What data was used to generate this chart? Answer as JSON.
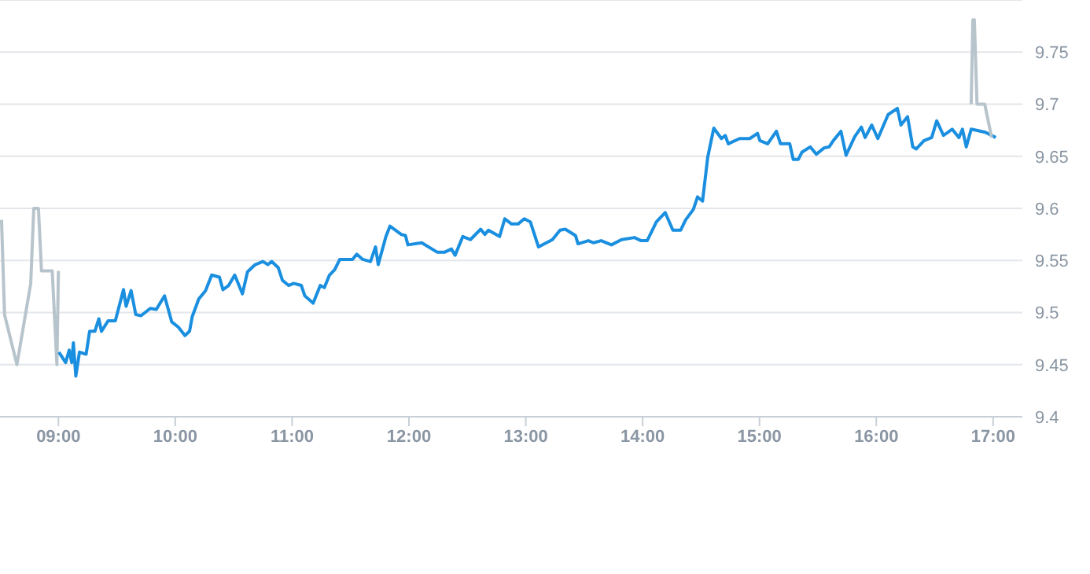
{
  "chart_data": {
    "type": "line",
    "xlim": [
      8.5,
      17.25
    ],
    "ylim": [
      9.4,
      9.8
    ],
    "xticks": [
      {
        "value": 9,
        "label": "09:00"
      },
      {
        "value": 10,
        "label": "10:00"
      },
      {
        "value": 11,
        "label": "11:00"
      },
      {
        "value": 12,
        "label": "12:00"
      },
      {
        "value": 13,
        "label": "13:00"
      },
      {
        "value": 14,
        "label": "14:00"
      },
      {
        "value": 15,
        "label": "15:00"
      },
      {
        "value": 16,
        "label": "16:00"
      },
      {
        "value": 17,
        "label": "17:00"
      }
    ],
    "yticks": [
      9.4,
      9.45,
      9.5,
      9.55,
      9.6,
      9.65,
      9.7,
      9.75
    ],
    "grid": "y",
    "marker": "none",
    "line_style": "solid",
    "series": [
      {
        "color": "#b8c4cc",
        "x": [
          8.513,
          8.539,
          8.645,
          8.763,
          8.789,
          8.829,
          8.855,
          8.947,
          8.987,
          9.0
        ],
        "values": [
          9.589,
          9.498,
          9.45,
          9.528,
          9.6,
          9.6,
          9.54,
          9.54,
          9.45,
          9.54
        ]
      },
      {
        "color": "#1a8fe0",
        "x": [
          9.004,
          9.062,
          9.092,
          9.114,
          9.128,
          9.149,
          9.18,
          9.237,
          9.267,
          9.312,
          9.346,
          9.368,
          9.425,
          9.487,
          9.557,
          9.579,
          9.622,
          9.662,
          9.707,
          9.786,
          9.838,
          9.908,
          9.97,
          10.026,
          10.083,
          10.122,
          10.145,
          10.201,
          10.259,
          10.312,
          10.378,
          10.408,
          10.457,
          10.509,
          10.575,
          10.618,
          10.684,
          10.75,
          10.793,
          10.825,
          10.882,
          10.917,
          10.97,
          11.013,
          11.079,
          11.109,
          11.18,
          11.241,
          11.276,
          11.32,
          11.364,
          11.408,
          11.517,
          11.553,
          11.605,
          11.671,
          11.714,
          11.737,
          11.803,
          11.838,
          11.934,
          11.97,
          11.991,
          12.109,
          12.241,
          12.307,
          12.364,
          12.395,
          12.461,
          12.526,
          12.614,
          12.649,
          12.68,
          12.776,
          12.82,
          12.878,
          12.934,
          12.987,
          13.039,
          13.109,
          13.228,
          13.293,
          13.338,
          13.425,
          13.447,
          13.536,
          13.579,
          13.645,
          13.733,
          13.82,
          13.93,
          13.987,
          14.039,
          14.118,
          14.193,
          14.259,
          14.325,
          14.368,
          14.434,
          14.47,
          14.513,
          14.557,
          14.609,
          14.675,
          14.707,
          14.733,
          14.829,
          14.917,
          14.983,
          15.004,
          15.07,
          15.145,
          15.18,
          15.259,
          15.289,
          15.333,
          15.364,
          15.434,
          15.487,
          15.553,
          15.596,
          15.632,
          15.697,
          15.741,
          15.816,
          15.872,
          15.904,
          15.961,
          16.013,
          16.101,
          16.18,
          16.211,
          16.267,
          16.312,
          16.342,
          16.408,
          16.474,
          16.517,
          16.575,
          16.649,
          16.707,
          16.737,
          16.77,
          16.812,
          16.934,
          17.022
        ],
        "values": [
          9.462,
          9.452,
          9.464,
          9.452,
          9.471,
          9.439,
          9.462,
          9.46,
          9.482,
          9.482,
          9.494,
          9.482,
          9.492,
          9.492,
          9.522,
          9.506,
          9.521,
          9.498,
          9.497,
          9.504,
          9.503,
          9.516,
          9.491,
          9.486,
          9.478,
          9.482,
          9.496,
          9.513,
          9.521,
          9.536,
          9.534,
          9.522,
          9.526,
          9.536,
          9.518,
          9.539,
          9.546,
          9.549,
          9.546,
          9.549,
          9.543,
          9.531,
          9.526,
          9.528,
          9.526,
          9.516,
          9.509,
          9.526,
          9.524,
          9.536,
          9.541,
          9.551,
          9.551,
          9.556,
          9.551,
          9.549,
          9.563,
          9.546,
          9.573,
          9.583,
          9.575,
          9.574,
          9.565,
          9.567,
          9.558,
          9.558,
          9.561,
          9.555,
          9.573,
          9.57,
          9.58,
          9.575,
          9.579,
          9.573,
          9.59,
          9.585,
          9.585,
          9.59,
          9.587,
          9.563,
          9.57,
          9.579,
          9.58,
          9.574,
          9.566,
          9.569,
          9.567,
          9.569,
          9.565,
          9.57,
          9.572,
          9.569,
          9.569,
          9.587,
          9.596,
          9.579,
          9.579,
          9.589,
          9.599,
          9.611,
          9.607,
          9.649,
          9.677,
          9.667,
          9.67,
          9.662,
          9.667,
          9.667,
          9.672,
          9.665,
          9.662,
          9.674,
          9.662,
          9.662,
          9.647,
          9.647,
          9.654,
          9.659,
          9.652,
          9.658,
          9.659,
          9.665,
          9.674,
          9.651,
          9.669,
          9.678,
          9.668,
          9.68,
          9.667,
          9.69,
          9.696,
          9.68,
          9.688,
          9.659,
          9.657,
          9.665,
          9.668,
          9.684,
          9.67,
          9.676,
          9.668,
          9.676,
          9.659,
          9.676,
          9.673,
          9.668
        ]
      },
      {
        "color": "#b8c4cc",
        "x": [
          16.812,
          16.826,
          16.839,
          16.862,
          16.928,
          16.987
        ],
        "values": [
          9.7,
          9.781,
          9.781,
          9.7,
          9.7,
          9.668
        ]
      }
    ]
  }
}
